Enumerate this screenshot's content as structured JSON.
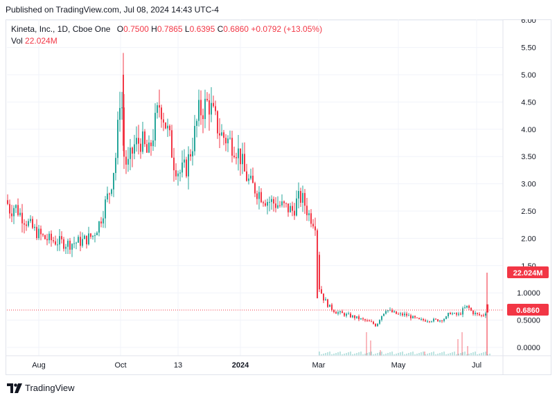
{
  "header": {
    "published_text": "Published on TradingView.com, Jul 08, 2024 14:43 UTC-4"
  },
  "legend": {
    "symbol": "Kineta, Inc., 1D, Cboe One",
    "open_label": "O",
    "open": "0.7500",
    "high_label": "H",
    "high": "0.7865",
    "low_label": "L",
    "low": "0.6395",
    "close_label": "C",
    "close": "0.6860",
    "change": "+0.0792 (+13.05%)",
    "vol_label": "Vol",
    "vol": "22.024M"
  },
  "footer": {
    "brand": "TradingView"
  },
  "colors": {
    "up": "#26a69a",
    "down": "#f23645",
    "grid": "#f0f3fa",
    "axis_text": "#131722"
  },
  "chart_data": {
    "type": "candlestick",
    "y_ticks": [
      "0.0000",
      "0.5000",
      "1.0000",
      "1.50",
      "2.00",
      "2.50",
      "3.00",
      "3.50",
      "4.00",
      "4.50",
      "5.00",
      "5.50",
      "6.00"
    ],
    "ylim": [
      -0.15,
      6.0
    ],
    "x_ticks": [
      "Aug",
      "Oct",
      "13",
      "2024",
      "Mar",
      "May",
      "Jul"
    ],
    "last_price_label": "0.6860",
    "volume_label": "22.024M",
    "grid": true,
    "close_path": [
      [
        0,
        2.7
      ],
      [
        6,
        2.5
      ],
      [
        12,
        2.6
      ],
      [
        20,
        2.45
      ],
      [
        30,
        2.3
      ],
      [
        40,
        2.15
      ],
      [
        55,
        2.0
      ],
      [
        70,
        1.95
      ],
      [
        90,
        1.9
      ],
      [
        110,
        1.95
      ],
      [
        125,
        2.05
      ],
      [
        135,
        2.3
      ],
      [
        142,
        2.6
      ],
      [
        150,
        2.9
      ],
      [
        158,
        3.5
      ],
      [
        163,
        4.3
      ],
      [
        166,
        5.2
      ],
      [
        168,
        3.6
      ],
      [
        175,
        3.3
      ],
      [
        185,
        3.7
      ],
      [
        195,
        3.8
      ],
      [
        205,
        3.5
      ],
      [
        215,
        4.1
      ],
      [
        222,
        4.5
      ],
      [
        228,
        4.2
      ],
      [
        236,
        3.8
      ],
      [
        242,
        3.4
      ],
      [
        250,
        3.2
      ],
      [
        260,
        3.3
      ],
      [
        270,
        3.8
      ],
      [
        278,
        4.3
      ],
      [
        285,
        4.4
      ],
      [
        292,
        4.5
      ],
      [
        300,
        4.2
      ],
      [
        310,
        3.9
      ],
      [
        320,
        3.8
      ],
      [
        330,
        3.7
      ],
      [
        338,
        3.5
      ],
      [
        344,
        3.2
      ],
      [
        352,
        3.0
      ],
      [
        360,
        2.9
      ],
      [
        368,
        2.8
      ],
      [
        376,
        2.7
      ],
      [
        386,
        2.65
      ],
      [
        396,
        2.6
      ],
      [
        406,
        2.55
      ],
      [
        414,
        2.5
      ],
      [
        420,
        2.7
      ],
      [
        426,
        2.75
      ],
      [
        432,
        2.6
      ],
      [
        436,
        2.45
      ],
      [
        442,
        2.35
      ],
      [
        448,
        2.25
      ],
      [
        449,
        1.75
      ],
      [
        452,
        1.1
      ],
      [
        458,
        0.9
      ],
      [
        466,
        0.75
      ],
      [
        476,
        0.65
      ],
      [
        490,
        0.6
      ],
      [
        504,
        0.55
      ],
      [
        516,
        0.5
      ],
      [
        528,
        0.45
      ],
      [
        534,
        0.4
      ],
      [
        540,
        0.55
      ],
      [
        548,
        0.7
      ],
      [
        556,
        0.65
      ],
      [
        566,
        0.6
      ],
      [
        576,
        0.6
      ],
      [
        586,
        0.55
      ],
      [
        596,
        0.5
      ],
      [
        606,
        0.5
      ],
      [
        616,
        0.5
      ],
      [
        626,
        0.5
      ],
      [
        636,
        0.55
      ],
      [
        640,
        0.65
      ],
      [
        646,
        0.6
      ],
      [
        654,
        0.6
      ],
      [
        660,
        0.7
      ],
      [
        666,
        0.75
      ],
      [
        672,
        0.65
      ],
      [
        680,
        0.6
      ],
      [
        688,
        0.58
      ],
      [
        694,
        0.69
      ]
    ]
  }
}
